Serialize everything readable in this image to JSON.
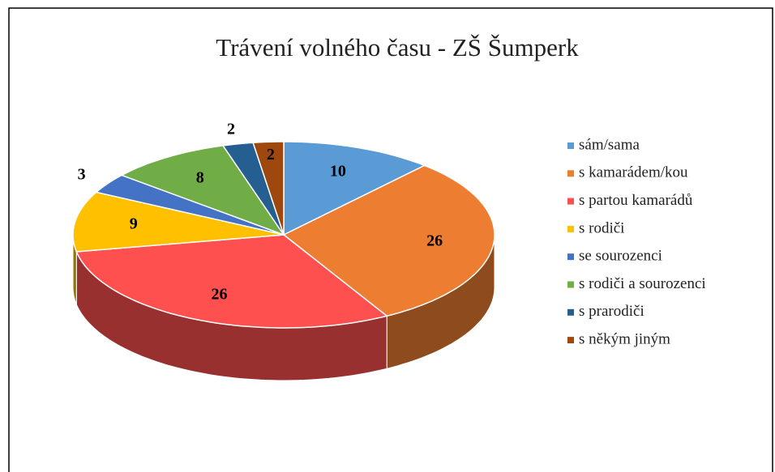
{
  "chart_data": {
    "type": "pie3d",
    "title": "Trávení volného času - ZŠ Šumperk",
    "categories": [
      "sám/sama",
      "s kamarádem/kou",
      "s partou kamarádů",
      "s rodiči",
      "se sourozenci",
      "s rodiči a sourozenci",
      "s prarodiči",
      "s někým jiným"
    ],
    "values": [
      10,
      26,
      26,
      9,
      3,
      8,
      2,
      2
    ],
    "colors": [
      "#5b9bd5",
      "#ed7d31",
      "#ff5050",
      "#ffc000",
      "#4472c4",
      "#70ad47",
      "#255e91",
      "#9e480e"
    ],
    "legend": "right"
  }
}
